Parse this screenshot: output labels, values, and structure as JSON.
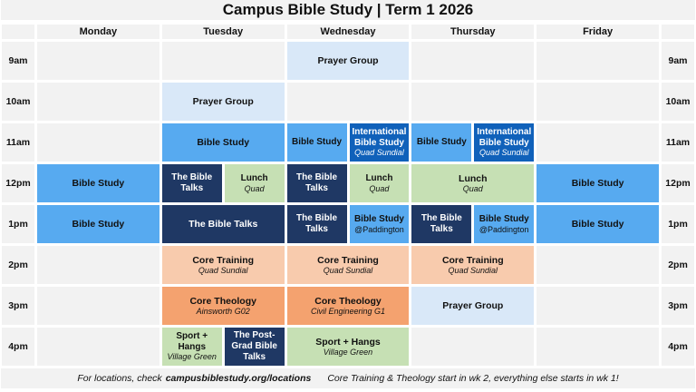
{
  "title": "Campus Bible Study | Term 1 2026",
  "days": [
    "Monday",
    "Tuesday",
    "Wednesday",
    "Thursday",
    "Friday"
  ],
  "times": [
    "9am",
    "10am",
    "11am",
    "12pm",
    "1pm",
    "2pm",
    "3pm",
    "4pm"
  ],
  "colors": {
    "bible_study": "#57aaf0",
    "the_bible_talks": "#1f3864",
    "international_bible_study": "#1061ba",
    "prayer_group": "#d9e8f8",
    "lunch_social": "#c6e0b4",
    "core_training": "#f8cbad",
    "core_theology": "#f4a26f",
    "empty_cell": "#f2f2f2"
  },
  "events": {
    "wed9_prayer_group": {
      "label": "Prayer Group"
    },
    "tue10_prayer_group": {
      "label": "Prayer Group"
    },
    "tue11_bible_study": {
      "label": "Bible Study"
    },
    "wed11_bible_study": {
      "label": "Bible Study"
    },
    "wed11_international": {
      "label": "International Bible Study",
      "location": "Quad Sundial"
    },
    "thu11_bible_study": {
      "label": "Bible Study"
    },
    "thu11_international": {
      "label": "International Bible Study",
      "location": "Quad Sundial"
    },
    "mon12_bible_study": {
      "label": "Bible Study"
    },
    "tue12_bible_talks": {
      "label": "The Bible Talks"
    },
    "tue12_lunch": {
      "label": "Lunch",
      "location": "Quad"
    },
    "wed12_bible_talks": {
      "label": "The Bible Talks"
    },
    "wed12_lunch": {
      "label": "Lunch",
      "location": "Quad"
    },
    "thu12_lunch": {
      "label": "Lunch",
      "location": "Quad"
    },
    "fri12_bible_study": {
      "label": "Bible Study"
    },
    "mon1_bible_study": {
      "label": "Bible Study"
    },
    "tue1_bible_talks": {
      "label": "The Bible Talks"
    },
    "wed1_bible_talks": {
      "label": "The Bible Talks"
    },
    "wed1_bible_study_paddington": {
      "label": "Bible Study",
      "location": "@Paddington"
    },
    "thu1_bible_talks": {
      "label": "The Bible Talks"
    },
    "thu1_bible_study_paddington": {
      "label": "Bible Study",
      "location": "@Paddington"
    },
    "fri1_bible_study": {
      "label": "Bible Study"
    },
    "tue2_core_training": {
      "label": "Core Training",
      "location": "Quad Sundial"
    },
    "wed2_core_training": {
      "label": "Core Training",
      "location": "Quad Sundial"
    },
    "thu2_core_training": {
      "label": "Core Training",
      "location": "Quad Sundial"
    },
    "tue3_core_theology": {
      "label": "Core Theology",
      "location": "Ainsworth G02"
    },
    "wed3_core_theology": {
      "label": "Core Theology",
      "location": "Civil Engineering G1"
    },
    "thu3_prayer_group": {
      "label": "Prayer Group"
    },
    "tue4_sport_hangs": {
      "label": "Sport + Hangs",
      "location": "Village Green"
    },
    "tue4_postgrad_bible_talks": {
      "label": "The Post-Grad Bible Talks"
    },
    "wed4_sport_hangs": {
      "label": "Sport + Hangs",
      "location": "Village Green"
    }
  },
  "footer": {
    "prefix": "For locations, check",
    "link": "campusbiblestudy.org/locations",
    "note": "Core Training & Theology start in wk 2, everything else starts in wk 1!"
  }
}
